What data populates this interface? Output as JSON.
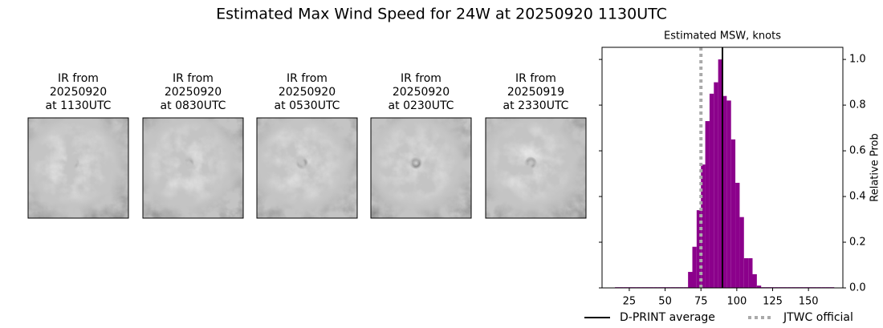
{
  "title": "Estimated Max Wind Speed for 24W at 20250920 1130UTC",
  "panels": [
    {
      "lines": [
        "IR from",
        "20250920",
        "at 1130UTC"
      ]
    },
    {
      "lines": [
        "IR from",
        "20250920",
        "at 0830UTC"
      ]
    },
    {
      "lines": [
        "IR from",
        "20250920",
        "at 0530UTC"
      ]
    },
    {
      "lines": [
        "IR from",
        "20250920",
        "at 0230UTC"
      ]
    },
    {
      "lines": [
        "IR from",
        "20250919",
        "at 2330UTC"
      ]
    }
  ],
  "chart_data": {
    "type": "histogram",
    "title": "Estimated MSW, knots",
    "y_label": "Relative Prob",
    "bins": [
      15,
      18,
      21,
      24,
      27,
      30,
      33,
      36,
      39,
      42,
      45,
      48,
      51,
      54,
      57,
      60,
      63,
      66,
      69,
      72,
      75,
      78,
      81,
      84,
      87,
      90,
      93,
      96,
      99,
      102,
      105,
      108,
      111,
      114,
      117,
      120,
      123,
      126,
      129,
      132,
      135,
      138,
      141,
      144,
      147,
      150,
      153,
      156,
      159,
      162,
      165,
      168
    ],
    "values": [
      0.003,
      0.003,
      0.003,
      0.003,
      0.003,
      0.003,
      0.003,
      0.003,
      0.003,
      0.003,
      0.003,
      0.003,
      0.003,
      0.003,
      0.003,
      0.003,
      0.003,
      0.07,
      0.18,
      0.34,
      0.54,
      0.73,
      0.85,
      0.9,
      1.0,
      0.84,
      0.82,
      0.65,
      0.46,
      0.31,
      0.13,
      0.13,
      0.06,
      0.01,
      0.003,
      0.003,
      0.003,
      0.003,
      0.003,
      0.003,
      0.003,
      0.003,
      0.003,
      0.003,
      0.003,
      0.003,
      0.003,
      0.003,
      0.003,
      0.003,
      0.003
    ],
    "color": "#8b008b",
    "xlim": [
      6,
      174
    ],
    "ylim": [
      0,
      1.053
    ],
    "xticks": [
      25,
      50,
      75,
      100,
      125,
      150
    ],
    "yticks": [
      {
        "value": 0,
        "label": "0.0"
      },
      0.2,
      0.4,
      0.6,
      0.8,
      {
        "value": 1,
        "label": "1.0"
      }
    ],
    "lines": [
      {
        "name": "D-PRINT average",
        "value": 90,
        "color": "#000000",
        "style": "solid"
      },
      {
        "name": "JTWC official",
        "value": 75,
        "color": "#aaaaaa",
        "style": "dotted"
      }
    ]
  }
}
